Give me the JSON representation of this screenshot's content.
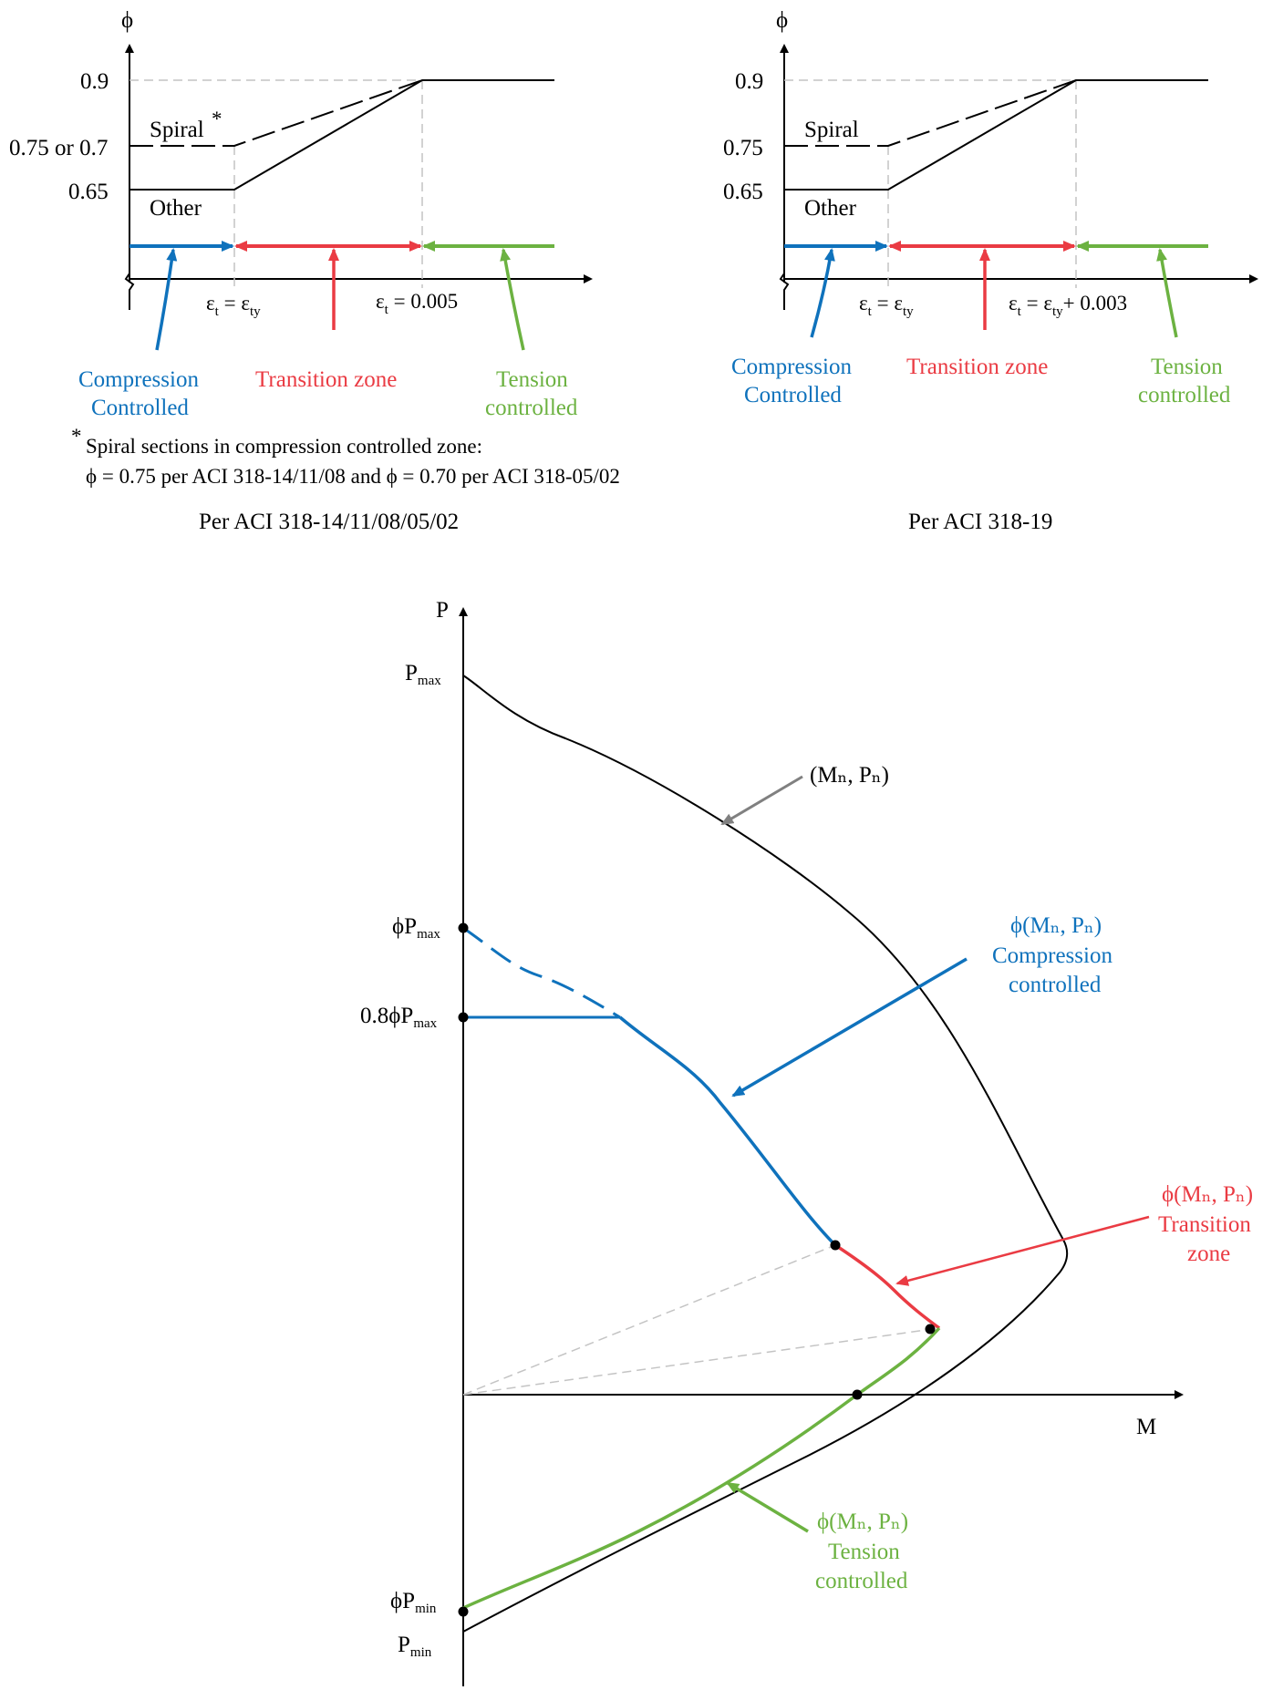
{
  "colors": {
    "compression": "#0f72bc",
    "transition": "#ea3b43",
    "tension": "#6cb241",
    "guide": "#c4c4c4",
    "annotation_gray": "#808080",
    "axis": "#000000"
  },
  "left_panel": {
    "axis_y": "ϕ",
    "y_ticks": [
      "0.9",
      "0.75 or 0.7",
      "0.65"
    ],
    "spiral_label": "Spiral",
    "spiral_star": "*",
    "other_label": "Other",
    "eps_label_1_a": "ε",
    "eps_label_1_b": "t",
    "eps_label_1_c": " = ε",
    "eps_label_1_d": "ty",
    "eps_label_2_a": "ε",
    "eps_label_2_b": "t",
    "eps_label_2_c": " = 0.005",
    "zone_compression_1": "Compression",
    "zone_compression_2": "Controlled",
    "zone_transition": "Transition zone",
    "zone_tension_1": "Tension",
    "zone_tension_2": "controlled",
    "footnote_star": "*",
    "footnote_1": "Spiral sections in compression controlled zone:",
    "footnote_2": "ϕ = 0.75 per ACI 318-14/11/08 and ϕ = 0.70 per ACI 318-05/02",
    "caption": "Per ACI 318-14/11/08/05/02"
  },
  "right_panel": {
    "axis_y": "ϕ",
    "y_ticks": [
      "0.9",
      "0.75",
      "0.65"
    ],
    "spiral_label": "Spiral",
    "other_label": "Other",
    "eps_label_1_a": "ε",
    "eps_label_1_b": "t",
    "eps_label_1_c": " = ε",
    "eps_label_1_d": "ty",
    "eps_label_2_a": "ε",
    "eps_label_2_b": "t",
    "eps_label_2_c": " = ε",
    "eps_label_2_d": "ty",
    "eps_label_2_e": "+ 0.003",
    "zone_compression_1": "Compression",
    "zone_compression_2": "Controlled",
    "zone_transition": "Transition zone",
    "zone_tension_1": "Tension",
    "zone_tension_2": "controlled",
    "caption": "Per ACI 318-19"
  },
  "interaction": {
    "axis_p": "P",
    "axis_m": "M",
    "pmax_a": "P",
    "pmax_b": "max",
    "phipmax_a": "ϕP",
    "phipmax_b": "max",
    "p08_a": "0.8ϕP",
    "p08_b": "max",
    "phipmin_a": "ϕP",
    "phipmin_b": "min",
    "pmin_a": "P",
    "pmin_b": "min",
    "nominal_label": "(Mₙ, Pₙ)",
    "compression_1": "ϕ(Mₙ, Pₙ)",
    "compression_2": "Compression",
    "compression_3": "controlled",
    "transition_1": "ϕ(Mₙ, Pₙ)",
    "transition_2": "Transition",
    "transition_3": "zone",
    "tension_1": "ϕ(Mₙ, Pₙ)",
    "tension_2": "Tension",
    "tension_3": "controlled"
  }
}
